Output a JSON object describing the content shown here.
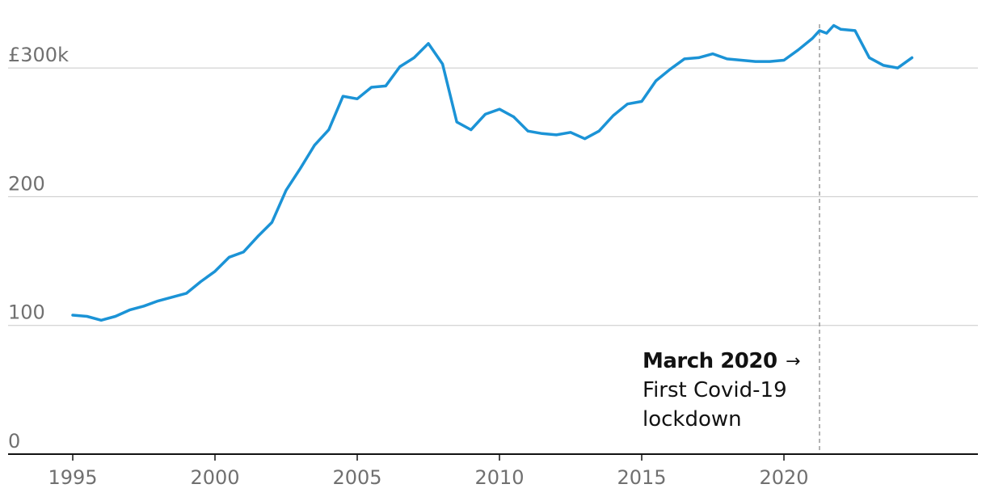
{
  "chart_data": {
    "type": "line",
    "title": "",
    "xlabel": "",
    "ylabel": "",
    "xlim": [
      1995,
      2024.5
    ],
    "ylim": [
      0,
      330
    ],
    "grid": true,
    "line_color": "#1b93d6",
    "y_ticks": [
      {
        "value": 0,
        "label": "0"
      },
      {
        "value": 100,
        "label": "100"
      },
      {
        "value": 200,
        "label": "200"
      },
      {
        "value": 300,
        "label": "£300k"
      }
    ],
    "x_ticks": [
      {
        "value": 1995,
        "label": "1995"
      },
      {
        "value": 2000,
        "label": "2000"
      },
      {
        "value": 2005,
        "label": "2005"
      },
      {
        "value": 2010,
        "label": "2010"
      },
      {
        "value": 2015,
        "label": "2015"
      },
      {
        "value": 2020,
        "label": "2020"
      }
    ],
    "series": [
      {
        "name": "",
        "x": [
          1995.0,
          1995.5,
          1996.0,
          1996.5,
          1997.0,
          1997.5,
          1998.0,
          1998.5,
          1999.0,
          1999.5,
          2000.0,
          2000.5,
          2001.0,
          2001.5,
          2002.0,
          2002.5,
          2003.0,
          2003.5,
          2004.0,
          2004.5,
          2005.0,
          2005.5,
          2006.0,
          2006.5,
          2007.0,
          2007.5,
          2008.0,
          2008.5,
          2009.0,
          2009.5,
          2010.0,
          2010.5,
          2011.0,
          2011.5,
          2012.0,
          2012.5,
          2013.0,
          2013.5,
          2014.0,
          2014.5,
          2015.0,
          2015.5,
          2016.0,
          2016.5,
          2017.0,
          2017.5,
          2018.0,
          2018.5,
          2019.0,
          2019.5,
          2020.0,
          2020.5,
          2021.0,
          2021.25,
          2021.5,
          2021.75,
          2022.0,
          2022.5,
          2023.0,
          2023.5,
          2024.0,
          2024.5
        ],
        "values": [
          108,
          107,
          104,
          107,
          112,
          115,
          119,
          122,
          125,
          134,
          142,
          153,
          157,
          169,
          180,
          205,
          222,
          240,
          252,
          278,
          276,
          285,
          286,
          301,
          308,
          319,
          303,
          258,
          252,
          264,
          268,
          262,
          251,
          249,
          248,
          250,
          245,
          251,
          263,
          272,
          274,
          290,
          299,
          307,
          308,
          311,
          307,
          306,
          305,
          305,
          306,
          314,
          323,
          329,
          327,
          333,
          330,
          329,
          308,
          302,
          300,
          308
        ]
      }
    ],
    "annotations": [
      {
        "x": 2021.25,
        "title": "March 2020",
        "arrow": "→",
        "lines": [
          "First Covid-19",
          "lockdown"
        ]
      }
    ]
  }
}
